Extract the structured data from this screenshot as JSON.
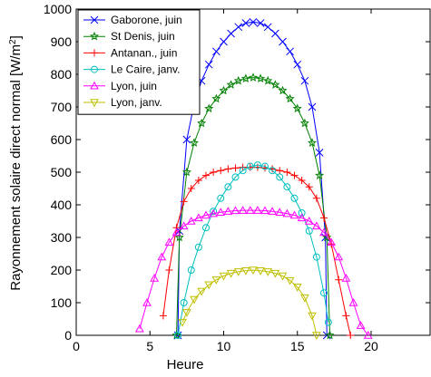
{
  "chart_data": {
    "type": "line",
    "title": "",
    "xlabel": "Heure",
    "ylabel": "Rayonnement solaire direct normal [W/m",
    "ylabel_sup": "2",
    "ylabel_tail": "]",
    "xlim": [
      0,
      24
    ],
    "ylim": [
      0,
      1000
    ],
    "xticks": [
      0,
      5,
      10,
      15,
      20
    ],
    "yticks": [
      0,
      100,
      200,
      300,
      400,
      500,
      600,
      700,
      800,
      900,
      1000
    ],
    "grid": false,
    "legend_position": "top-left",
    "series": [
      {
        "name": "Gaboronе, juin",
        "color": "#0000ff",
        "marker": "x",
        "x": [
          6.9,
          7.0,
          7.5,
          8.0,
          8.5,
          9.0,
          9.5,
          10.0,
          10.5,
          11.0,
          11.5,
          12.0,
          12.5,
          13.0,
          13.5,
          14.0,
          14.5,
          15.0,
          15.5,
          16.0,
          16.5,
          16.9,
          17.0
        ],
        "y": [
          0,
          320,
          600,
          710,
          780,
          830,
          870,
          900,
          925,
          945,
          957,
          960,
          957,
          945,
          925,
          900,
          870,
          830,
          780,
          700,
          560,
          300,
          0
        ]
      },
      {
        "name": "St Denis, juin",
        "color": "#008000",
        "marker": "star",
        "x": [
          6.8,
          7.0,
          7.5,
          8.0,
          8.5,
          9.0,
          9.5,
          10.0,
          10.5,
          11.0,
          11.5,
          12.0,
          12.5,
          13.0,
          13.5,
          14.0,
          14.5,
          15.0,
          15.5,
          16.0,
          16.5,
          17.0,
          17.2
        ],
        "y": [
          0,
          300,
          500,
          590,
          650,
          695,
          725,
          750,
          768,
          780,
          787,
          790,
          787,
          780,
          768,
          750,
          725,
          695,
          650,
          590,
          490,
          300,
          0
        ]
      },
      {
        "name": "Antanan., juin",
        "color": "#ff0000",
        "marker": "plus",
        "x": [
          5.9,
          6.3,
          6.8,
          7.3,
          7.8,
          8.3,
          8.8,
          9.3,
          9.8,
          10.3,
          10.8,
          11.3,
          11.8,
          12.3,
          12.8,
          13.3,
          13.8,
          14.3,
          14.8,
          15.3,
          15.8,
          16.3,
          16.8,
          17.3,
          17.8,
          18.3,
          18.6
        ],
        "y": [
          60,
          200,
          330,
          410,
          450,
          475,
          490,
          500,
          505,
          510,
          513,
          515,
          515,
          515,
          513,
          510,
          505,
          500,
          490,
          475,
          455,
          420,
          360,
          280,
          170,
          60,
          0
        ]
      },
      {
        "name": "Le Caire, janv.",
        "color": "#00bfbf",
        "marker": "circle",
        "x": [
          6.9,
          7.3,
          7.8,
          8.3,
          8.8,
          9.3,
          9.8,
          10.3,
          10.8,
          11.3,
          11.8,
          12.3,
          12.8,
          13.3,
          13.8,
          14.3,
          14.8,
          15.3,
          15.8,
          16.3,
          16.8,
          17.1
        ],
        "y": [
          0,
          100,
          200,
          270,
          330,
          380,
          420,
          455,
          485,
          505,
          518,
          522,
          518,
          505,
          485,
          455,
          420,
          375,
          320,
          240,
          130,
          40
        ]
      },
      {
        "name": "Lyon, juin",
        "color": "#ff00ff",
        "marker": "triangle-up",
        "x": [
          4.3,
          4.8,
          5.3,
          5.8,
          6.3,
          6.8,
          7.3,
          7.8,
          8.3,
          8.8,
          9.3,
          9.8,
          10.3,
          10.8,
          11.3,
          11.8,
          12.3,
          12.8,
          13.3,
          13.8,
          14.3,
          14.8,
          15.3,
          15.8,
          16.3,
          16.8,
          17.3,
          17.8,
          18.3,
          18.8,
          19.3,
          19.8
        ],
        "y": [
          20,
          100,
          175,
          240,
          285,
          315,
          335,
          350,
          360,
          368,
          373,
          377,
          380,
          382,
          383,
          383,
          383,
          382,
          380,
          377,
          373,
          368,
          360,
          350,
          335,
          315,
          285,
          240,
          175,
          100,
          30,
          0
        ]
      },
      {
        "name": "Lyon, janv.",
        "color": "#bfbf00",
        "marker": "triangle-down",
        "x": [
          7.2,
          7.5,
          8.0,
          8.5,
          9.0,
          9.5,
          10.0,
          10.5,
          11.0,
          11.5,
          12.0,
          12.5,
          13.0,
          13.5,
          14.0,
          14.5,
          15.0,
          15.5,
          16.0,
          16.3
        ],
        "y": [
          40,
          70,
          110,
          135,
          155,
          170,
          182,
          190,
          195,
          198,
          200,
          198,
          195,
          190,
          182,
          168,
          148,
          115,
          60,
          0
        ]
      }
    ]
  }
}
